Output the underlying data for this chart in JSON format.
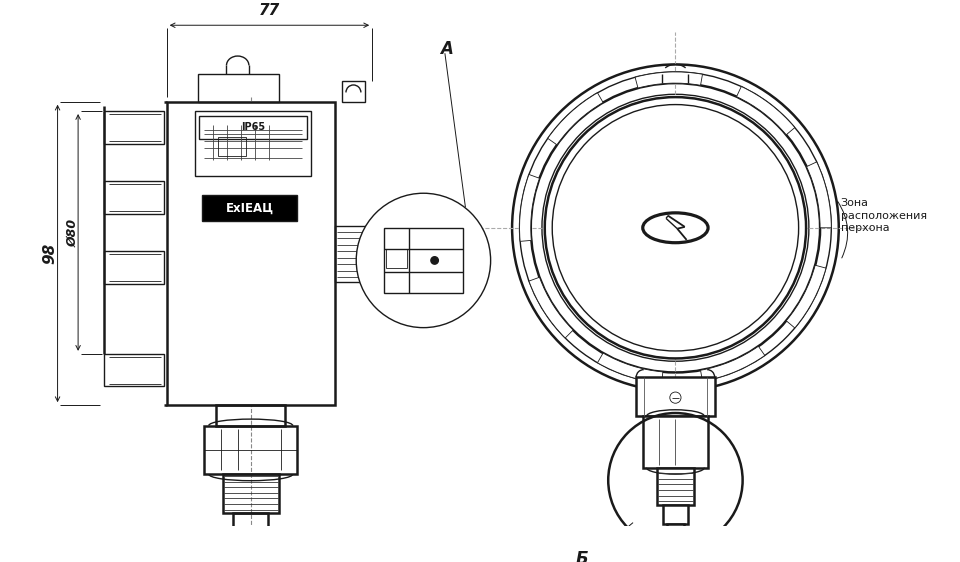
{
  "bg_color": "#ffffff",
  "line_color": "#1a1a1a",
  "dim_color": "#1a1a1a",
  "label_A": "A",
  "label_B": "Б",
  "dim_77": "77",
  "dim_98": "98",
  "dim_80": "Ø80",
  "zone_text": "Зона\nрасположения\nперхона",
  "ip65_text": "IP65",
  "exeac_text": "ExIЕАЦ",
  "fig_width": 9.6,
  "fig_height": 5.62
}
